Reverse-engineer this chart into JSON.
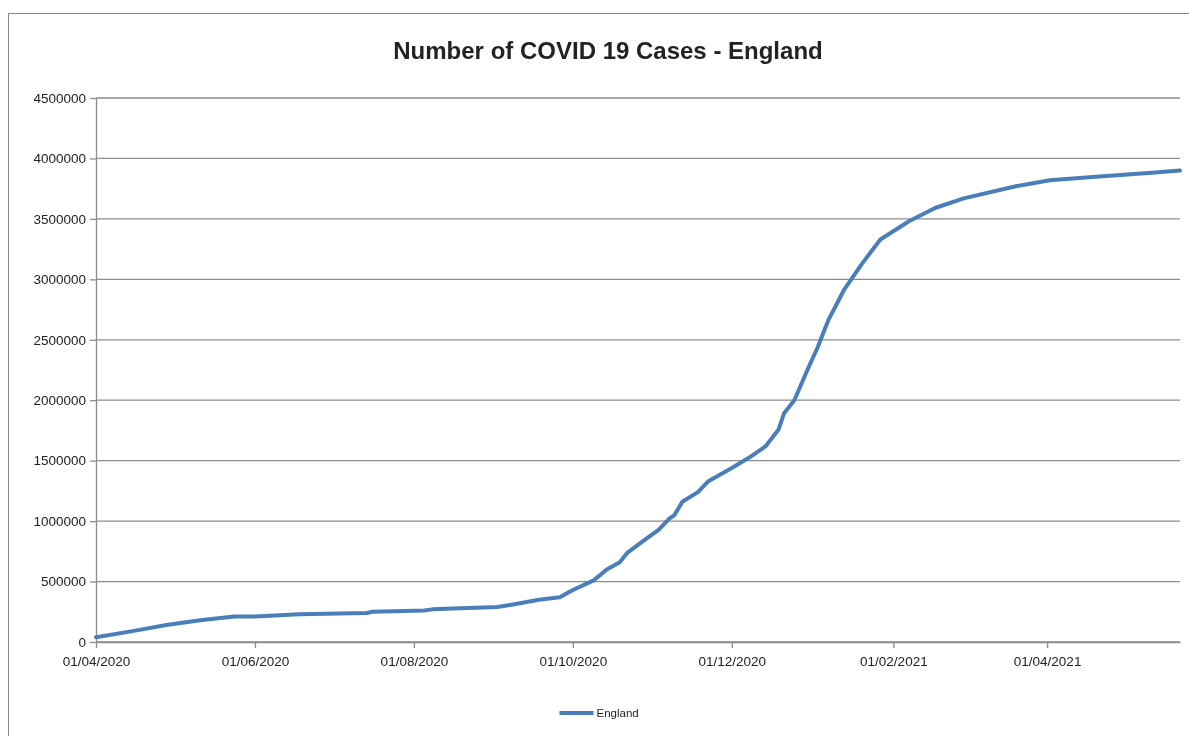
{
  "chart_data": {
    "type": "line",
    "title": "Number of COVID 19 Cases - England",
    "x": [
      "2020-04-01",
      "2020-04-15",
      "2020-04-28",
      "2020-05-11",
      "2020-05-24",
      "2020-06-01",
      "2020-06-18",
      "2020-07-14",
      "2020-07-16",
      "2020-08-05",
      "2020-08-08",
      "2020-08-19",
      "2020-09-02",
      "2020-09-08",
      "2020-09-18",
      "2020-09-26",
      "2020-10-01",
      "2020-10-09",
      "2020-10-14",
      "2020-10-19",
      "2020-10-22",
      "2020-10-27",
      "2020-11-03",
      "2020-11-07",
      "2020-11-09",
      "2020-11-12",
      "2020-11-18",
      "2020-11-22",
      "2020-12-01",
      "2020-12-08",
      "2020-12-14",
      "2020-12-19",
      "2020-12-21",
      "2020-12-25",
      "2020-12-30",
      "2021-01-03",
      "2021-01-07",
      "2021-01-13",
      "2021-01-20",
      "2021-01-27",
      "2021-02-07",
      "2021-02-17",
      "2021-02-28",
      "2021-03-20",
      "2021-04-02",
      "2021-04-21",
      "2021-05-10",
      "2021-05-22"
    ],
    "series": [
      {
        "name": "England",
        "color": "#4a7ebb",
        "values": [
          40000,
          90000,
          140000,
          180000,
          210000,
          210000,
          230000,
          240000,
          250000,
          260000,
          270000,
          280000,
          290000,
          310000,
          350000,
          370000,
          430000,
          510000,
          600000,
          660000,
          740000,
          820000,
          930000,
          1020000,
          1050000,
          1160000,
          1240000,
          1330000,
          1440000,
          1530000,
          1620000,
          1760000,
          1890000,
          2000000,
          2250000,
          2440000,
          2660000,
          2910000,
          3130000,
          3330000,
          3480000,
          3590000,
          3670000,
          3770000,
          3820000,
          3850000,
          3880000,
          3900000
        ]
      }
    ],
    "xlim": [
      "2020-04-01",
      "2021-05-22"
    ],
    "xticks": [
      {
        "value": "2020-04-01",
        "label": "01/04/2020"
      },
      {
        "value": "2020-06-01",
        "label": "01/06/2020"
      },
      {
        "value": "2020-08-01",
        "label": "01/08/2020"
      },
      {
        "value": "2020-10-01",
        "label": "01/10/2020"
      },
      {
        "value": "2020-12-01",
        "label": "01/12/2020"
      },
      {
        "value": "2021-02-01",
        "label": "01/02/2021"
      },
      {
        "value": "2021-04-01",
        "label": "01/04/2021"
      }
    ],
    "ylim": [
      0,
      4500000
    ],
    "yticks": [
      0,
      500000,
      1000000,
      1500000,
      2000000,
      2500000,
      3000000,
      3500000,
      4000000,
      4500000
    ],
    "grid": "y",
    "legend": "bottom",
    "line_style": "solid"
  }
}
